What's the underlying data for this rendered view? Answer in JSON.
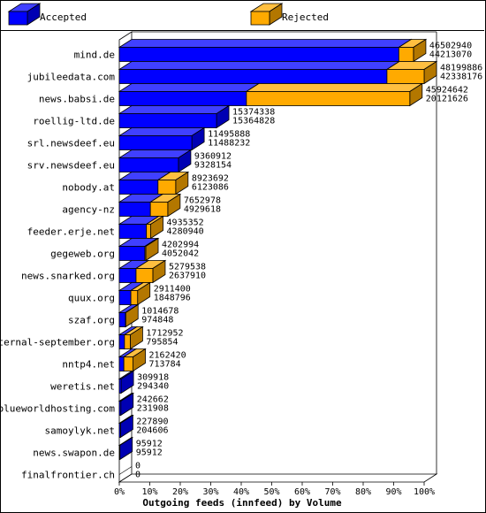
{
  "chart_data": {
    "type": "bar",
    "orientation": "horizontal",
    "stacked": true,
    "title": "Outgoing feeds (innfeed) by Volume",
    "xlim": [
      0,
      100
    ],
    "x_ticks": [
      "0%",
      "10%",
      "20%",
      "30%",
      "40%",
      "50%",
      "60%",
      "70%",
      "80%",
      "90%",
      "100%"
    ],
    "legend_placement": "top",
    "series": [
      {
        "name": "Accepted",
        "color": "#0000ff"
      },
      {
        "name": "Rejected",
        "color": "#ffaa00"
      }
    ],
    "categories": [
      "mind.de",
      "jubileedata.com",
      "news.babsi.de",
      "roellig-ltd.de",
      "srl.newsdeef.eu",
      "srv.newsdeef.eu",
      "nobody.at",
      "agency-nz",
      "feeder.erje.net",
      "gegeweb.org",
      "news.snarked.org",
      "quux.org",
      "szaf.org",
      "eternal-september.org",
      "nntp4.net",
      "weretis.net",
      "blueworldhosting.com",
      "samoylyk.net",
      "news.swapon.de",
      "finalfrontier.ch"
    ],
    "offered": [
      "46502940",
      "48199886",
      "45924642",
      "15374338",
      "11495888",
      "9360912",
      "8923692",
      "7652978",
      "4935352",
      "4202994",
      "5279538",
      "2911400",
      "1014678",
      "1712952",
      "2162420",
      "309918",
      "242662",
      "227890",
      "95912",
      "0"
    ],
    "accepted_bytes": [
      "44213070",
      "42338176",
      "20121626",
      "15364828",
      "11488232",
      "9328154",
      "6123086",
      "4929618",
      "4280940",
      "4052042",
      "2637910",
      "1848796",
      "974848",
      "795854",
      "713784",
      "294340",
      "231908",
      "204606",
      "95912",
      "0"
    ],
    "accepted_pct": [
      91.7,
      87.8,
      41.7,
      31.9,
      23.8,
      19.4,
      12.7,
      10.2,
      8.9,
      8.4,
      5.5,
      3.8,
      2.0,
      1.7,
      1.5,
      0.6,
      0.5,
      0.4,
      0.2,
      0
    ],
    "rejected_pct": [
      4.8,
      12.2,
      53.6,
      0,
      0,
      0,
      5.8,
      5.7,
      1.4,
      0.3,
      5.5,
      2.2,
      0.1,
      1.9,
      3.0,
      0,
      0,
      0,
      0,
      0
    ]
  }
}
